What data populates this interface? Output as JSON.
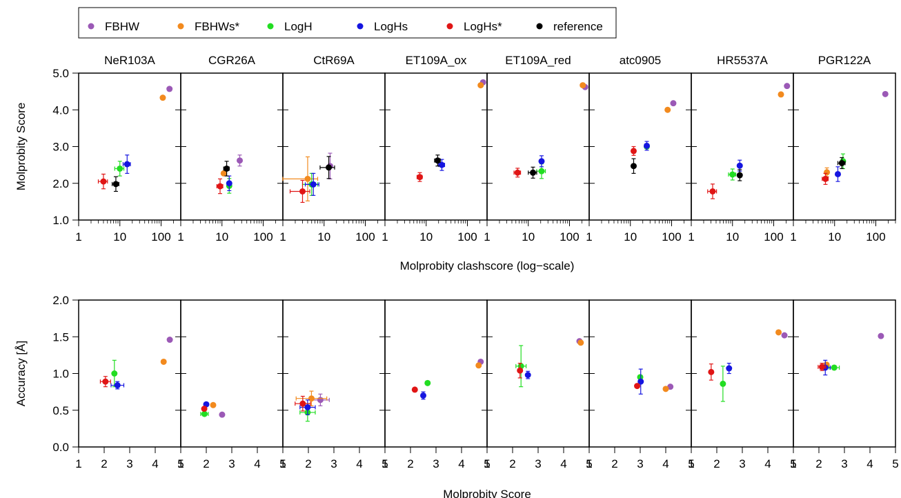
{
  "legend": {
    "entries": [
      {
        "label": "FBHW",
        "color": "#9b59b6"
      },
      {
        "label": "FBHWs*",
        "color": "#f28a1e"
      },
      {
        "label": "LogH",
        "color": "#22dd22"
      },
      {
        "label": "LogHs",
        "color": "#1515e0"
      },
      {
        "label": "LogHs*",
        "color": "#e01515"
      },
      {
        "label": "reference",
        "color": "#000000"
      }
    ],
    "placement": "top-left"
  },
  "chart_data": [
    {
      "type": "scatter",
      "xlabel": "Molprobity clashscore (log−scale)",
      "ylabel": "Molprobity Score",
      "xscale": "log",
      "xlim": [
        1,
        300
      ],
      "ylim": [
        1.0,
        5.0
      ],
      "xticks": [
        "1",
        "10",
        "100"
      ],
      "yticks": [
        "1.0",
        "2.0",
        "3.0",
        "4.0",
        "5.0"
      ],
      "panels": [
        {
          "title": "NeR103A",
          "points": [
            {
              "series": "FBHW",
              "x": 160,
              "y": 4.57
            },
            {
              "series": "FBHWs*",
              "x": 110,
              "y": 4.33
            },
            {
              "series": "LogH",
              "x": 10,
              "y": 2.4,
              "xerr": 2.5,
              "yerr": 0.2
            },
            {
              "series": "LogHs",
              "x": 15,
              "y": 2.52,
              "xerr": 3,
              "yerr": 0.25
            },
            {
              "series": "LogHs*",
              "x": 4,
              "y": 2.05,
              "xerr": 1,
              "yerr": 0.2
            },
            {
              "series": "reference",
              "x": 8,
              "y": 1.98,
              "xerr": 1.5,
              "yerr": 0.2
            }
          ]
        },
        {
          "title": "CGR26A",
          "points": [
            {
              "series": "FBHW",
              "x": 27,
              "y": 2.62,
              "yerr": 0.15
            },
            {
              "series": "FBHWs*",
              "x": 11,
              "y": 2.27
            },
            {
              "series": "LogH",
              "x": 15,
              "y": 1.93,
              "yerr": 0.2
            },
            {
              "series": "LogHs",
              "x": 15,
              "y": 2.0,
              "yerr": 0.2
            },
            {
              "series": "LogHs*",
              "x": 9,
              "y": 1.92,
              "xerr": 1.5,
              "yerr": 0.2
            },
            {
              "series": "reference",
              "x": 13,
              "y": 2.4,
              "xerr": 2,
              "yerr": 0.2
            }
          ]
        },
        {
          "title": "CtR69A",
          "points": [
            {
              "series": "FBHW",
              "x": 14,
              "y": 2.47,
              "yerr": 0.35
            },
            {
              "series": "FBHWs*",
              "x": 4,
              "y": 2.12,
              "xerr": 3,
              "yerr": 0.6
            },
            {
              "series": "LogH",
              "x": 5,
              "y": 1.97,
              "xerr": 2,
              "yerr": 0.3
            },
            {
              "series": "LogHs",
              "x": 5.5,
              "y": 1.97,
              "xerr": 2,
              "yerr": 0.3
            },
            {
              "series": "LogHs*",
              "x": 3,
              "y": 1.78,
              "xerr": 1.5,
              "yerr": 0.3
            },
            {
              "series": "reference",
              "x": 13,
              "y": 2.43,
              "xerr": 5,
              "yerr": 0.3
            }
          ]
        },
        {
          "title": "ET109A_ox",
          "points": [
            {
              "series": "FBHW",
              "x": 240,
              "y": 4.75
            },
            {
              "series": "FBHWs*",
              "x": 210,
              "y": 4.67
            },
            {
              "series": "LogHs",
              "x": 24,
              "y": 2.5,
              "xerr": 4,
              "yerr": 0.15
            },
            {
              "series": "LogHs*",
              "x": 7,
              "y": 2.17,
              "xerr": 1,
              "yerr": 0.12
            },
            {
              "series": "reference",
              "x": 19,
              "y": 2.62,
              "xerr": 3,
              "yerr": 0.15
            }
          ]
        },
        {
          "title": "ET109A_red",
          "points": [
            {
              "series": "FBHW",
              "x": 240,
              "y": 4.62
            },
            {
              "series": "FBHWs*",
              "x": 210,
              "y": 4.67
            },
            {
              "series": "LogH",
              "x": 21,
              "y": 2.33,
              "xerr": 5,
              "yerr": 0.2
            },
            {
              "series": "LogHs",
              "x": 21,
              "y": 2.6,
              "yerr": 0.15
            },
            {
              "series": "LogHs*",
              "x": 5.5,
              "y": 2.29,
              "xerr": 1,
              "yerr": 0.12
            },
            {
              "series": "reference",
              "x": 13,
              "y": 2.29,
              "xerr": 3,
              "yerr": 0.15
            }
          ]
        },
        {
          "title": "atc0905",
          "points": [
            {
              "series": "FBHW",
              "x": 110,
              "y": 4.18
            },
            {
              "series": "FBHWs*",
              "x": 80,
              "y": 4.0
            },
            {
              "series": "LogH",
              "x": 25,
              "y": 3.0
            },
            {
              "series": "LogHs",
              "x": 25,
              "y": 3.02,
              "xerr": 3,
              "yerr": 0.12
            },
            {
              "series": "LogHs*",
              "x": 12,
              "y": 2.88,
              "yerr": 0.12
            },
            {
              "series": "reference",
              "x": 12,
              "y": 2.47,
              "yerr": 0.2
            }
          ]
        },
        {
          "title": "HR5537A",
          "points": [
            {
              "series": "FBHW",
              "x": 210,
              "y": 4.65
            },
            {
              "series": "FBHWs*",
              "x": 150,
              "y": 4.42
            },
            {
              "series": "LogH",
              "x": 10,
              "y": 2.24,
              "xerr": 2,
              "yerr": 0.15
            },
            {
              "series": "LogHs",
              "x": 15,
              "y": 2.48,
              "yerr": 0.15
            },
            {
              "series": "LogHs*",
              "x": 3.3,
              "y": 1.78,
              "xerr": 0.8,
              "yerr": 0.2
            },
            {
              "series": "reference",
              "x": 15,
              "y": 2.22,
              "yerr": 0.15
            }
          ]
        },
        {
          "title": "PGR122A",
          "points": [
            {
              "series": "FBHW",
              "x": 170,
              "y": 4.43
            },
            {
              "series": "FBHWs*",
              "x": 6.5,
              "y": 2.3,
              "yerr": 0.12
            },
            {
              "series": "LogH",
              "x": 16,
              "y": 2.6,
              "yerr": 0.2
            },
            {
              "series": "LogHs",
              "x": 12,
              "y": 2.25,
              "yerr": 0.2
            },
            {
              "series": "LogHs*",
              "x": 6,
              "y": 2.12,
              "xerr": 1,
              "yerr": 0.15
            },
            {
              "series": "reference",
              "x": 15,
              "y": 2.55,
              "xerr": 3,
              "yerr": 0.15
            }
          ]
        }
      ]
    },
    {
      "type": "scatter",
      "xlabel": "Molprobity Score",
      "ylabel": "Accuracy [Å]",
      "xscale": "linear",
      "xlim": [
        1,
        5
      ],
      "ylim": [
        0.0,
        2.0
      ],
      "xticks": [
        "1",
        "2",
        "3",
        "4",
        "5"
      ],
      "yticks": [
        "0.0",
        "0.5",
        "1.0",
        "1.5",
        "2.0"
      ],
      "panels": [
        {
          "title": "NeR103A",
          "points": [
            {
              "series": "FBHW",
              "x": 4.57,
              "y": 1.46
            },
            {
              "series": "FBHWs*",
              "x": 4.33,
              "y": 1.16
            },
            {
              "series": "LogH",
              "x": 2.4,
              "y": 1.0,
              "yerr": 0.18
            },
            {
              "series": "LogHs",
              "x": 2.52,
              "y": 0.84,
              "xerr": 0.25,
              "yerr": 0.05
            },
            {
              "series": "LogHs*",
              "x": 2.05,
              "y": 0.89,
              "xerr": 0.2,
              "yerr": 0.07
            }
          ]
        },
        {
          "title": "CGR26A",
          "points": [
            {
              "series": "FBHW",
              "x": 2.62,
              "y": 0.44
            },
            {
              "series": "FBHWs*",
              "x": 2.27,
              "y": 0.57
            },
            {
              "series": "LogH",
              "x": 1.93,
              "y": 0.45,
              "xerr": 0.15
            },
            {
              "series": "LogHs",
              "x": 2.0,
              "y": 0.58
            },
            {
              "series": "LogHs*",
              "x": 1.92,
              "y": 0.52
            }
          ]
        },
        {
          "title": "CtR69A",
          "points": [
            {
              "series": "FBHW",
              "x": 2.47,
              "y": 0.64,
              "xerr": 0.35,
              "yerr": 0.08
            },
            {
              "series": "FBHWs*",
              "x": 2.12,
              "y": 0.66,
              "xerr": 0.6,
              "yerr": 0.1
            },
            {
              "series": "LogH",
              "x": 1.97,
              "y": 0.47,
              "xerr": 0.3,
              "yerr": 0.12
            },
            {
              "series": "LogHs",
              "x": 1.97,
              "y": 0.54,
              "xerr": 0.3,
              "yerr": 0.1
            },
            {
              "series": "LogHs*",
              "x": 1.78,
              "y": 0.59,
              "xerr": 0.3,
              "yerr": 0.1
            }
          ]
        },
        {
          "title": "ET109A_ox",
          "points": [
            {
              "series": "FBHW",
              "x": 4.75,
              "y": 1.16
            },
            {
              "series": "FBHWs*",
              "x": 4.67,
              "y": 1.11
            },
            {
              "series": "LogH",
              "x": 2.67,
              "y": 0.87
            },
            {
              "series": "LogHs",
              "x": 2.5,
              "y": 0.7,
              "yerr": 0.05
            },
            {
              "series": "LogHs*",
              "x": 2.17,
              "y": 0.78
            }
          ]
        },
        {
          "title": "ET109A_red",
          "points": [
            {
              "series": "FBHW",
              "x": 4.62,
              "y": 1.44
            },
            {
              "series": "FBHWs*",
              "x": 4.67,
              "y": 1.42
            },
            {
              "series": "LogH",
              "x": 2.33,
              "y": 1.1,
              "xerr": 0.2,
              "yerr": 0.28
            },
            {
              "series": "LogHs",
              "x": 2.6,
              "y": 0.98,
              "yerr": 0.05
            },
            {
              "series": "LogHs*",
              "x": 2.29,
              "y": 1.04,
              "yerr": 0.1
            }
          ]
        },
        {
          "title": "atc0905",
          "points": [
            {
              "series": "FBHW",
              "x": 4.18,
              "y": 0.82
            },
            {
              "series": "FBHWs*",
              "x": 4.0,
              "y": 0.79
            },
            {
              "series": "LogH",
              "x": 3.0,
              "y": 0.95
            },
            {
              "series": "LogHs",
              "x": 3.02,
              "y": 0.89,
              "yerr": 0.17
            },
            {
              "series": "LogHs*",
              "x": 2.88,
              "y": 0.83
            }
          ]
        },
        {
          "title": "HR5537A",
          "points": [
            {
              "series": "FBHW",
              "x": 4.65,
              "y": 1.52
            },
            {
              "series": "FBHWs*",
              "x": 4.42,
              "y": 1.56
            },
            {
              "series": "LogH",
              "x": 2.24,
              "y": 0.86,
              "yerr": 0.24
            },
            {
              "series": "LogHs",
              "x": 2.48,
              "y": 1.07,
              "yerr": 0.07
            },
            {
              "series": "LogHs*",
              "x": 1.78,
              "y": 1.02,
              "yerr": 0.11
            }
          ]
        },
        {
          "title": "PGR122A",
          "points": [
            {
              "series": "FBHW",
              "x": 4.43,
              "y": 1.51
            },
            {
              "series": "FBHWs*",
              "x": 2.3,
              "y": 1.12
            },
            {
              "series": "LogH",
              "x": 2.6,
              "y": 1.08,
              "xerr": 0.2
            },
            {
              "series": "LogHs",
              "x": 2.25,
              "y": 1.08,
              "xerr": 0.2,
              "yerr": 0.1
            },
            {
              "series": "LogHs*",
              "x": 2.12,
              "y": 1.09,
              "xerr": 0.15,
              "yerr": 0.05
            }
          ]
        }
      ]
    }
  ]
}
